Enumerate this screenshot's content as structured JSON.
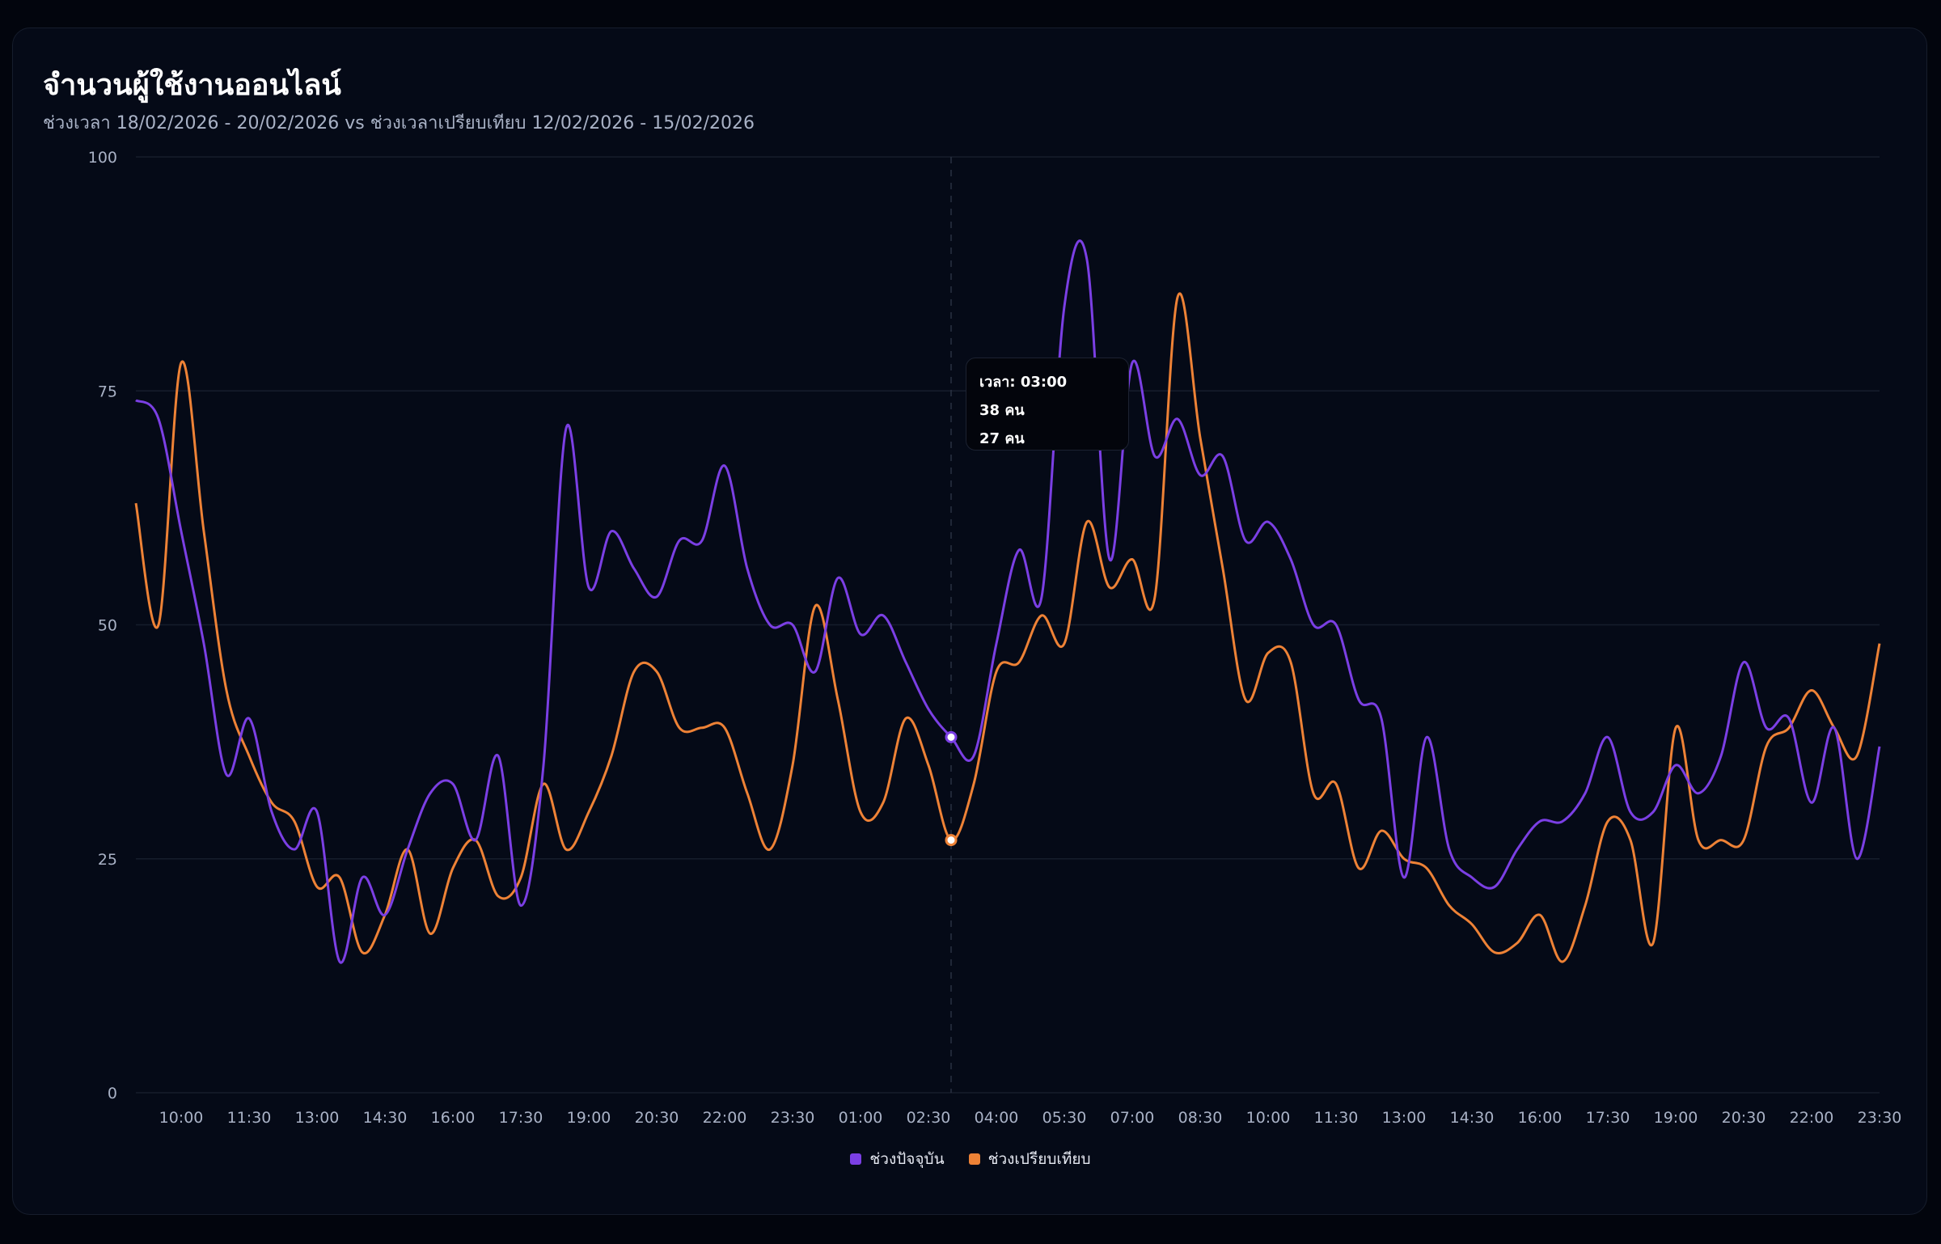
{
  "header": {
    "title": "จำนวนผู้ใช้งานออนไลน์",
    "subtitle": "ช่วงเวลา 18/02/2026 - 20/02/2026 vs ช่วงเวลาเปรียบเทียบ 12/02/2026 - 15/02/2026"
  },
  "tooltip": {
    "time_label": "เวลา: 03:00",
    "current_value": "38 คน",
    "compare_value": "27 คน"
  },
  "colors": {
    "current": "#7b3fe4",
    "compare": "#ee8236",
    "grid": "#161d2c",
    "axis_text": "#a9b2c6"
  },
  "chart_data": {
    "type": "line",
    "title": "จำนวนผู้ใช้งานออนไลน์",
    "xlabel": "",
    "ylabel": "",
    "ylim": [
      0,
      100
    ],
    "y_ticks": [
      0,
      25,
      50,
      75,
      100
    ],
    "grid": true,
    "legend_placement": "bottom",
    "x": [
      "09:00",
      "09:30",
      "10:00",
      "10:30",
      "11:00",
      "11:30",
      "12:00",
      "12:30",
      "13:00",
      "13:30",
      "14:00",
      "14:30",
      "15:00",
      "15:30",
      "16:00",
      "16:30",
      "17:00",
      "17:30",
      "18:00",
      "18:30",
      "19:00",
      "19:30",
      "20:00",
      "20:30",
      "21:00",
      "21:30",
      "22:00",
      "22:30",
      "23:00",
      "23:30",
      "00:00",
      "00:30",
      "01:00",
      "01:30",
      "02:00",
      "02:30",
      "03:00",
      "03:30",
      "04:00",
      "04:30",
      "05:00",
      "05:30",
      "06:00",
      "06:30",
      "07:00",
      "07:30",
      "08:00",
      "08:30",
      "09:00",
      "09:30",
      "10:00",
      "10:30",
      "11:00",
      "11:30",
      "12:00",
      "12:30",
      "13:00",
      "13:30",
      "14:00",
      "14:30",
      "15:00",
      "15:30",
      "16:00",
      "16:30",
      "17:00",
      "17:30",
      "18:00",
      "18:30",
      "19:00",
      "19:30",
      "20:00",
      "20:30",
      "21:00",
      "21:30",
      "22:00",
      "22:30",
      "23:00",
      "23:30"
    ],
    "x_tick_labels": [
      "10:00",
      "11:30",
      "13:00",
      "14:30",
      "16:00",
      "17:30",
      "19:00",
      "20:30",
      "22:00",
      "23:30",
      "01:00",
      "02:30",
      "04:00",
      "05:30",
      "07:00",
      "08:30",
      "10:00",
      "11:30",
      "13:00",
      "14:30",
      "16:00",
      "17:30",
      "19:00",
      "20:30",
      "22:00",
      "23:30"
    ],
    "series": [
      {
        "name": "ช่วงปัจจุบัน",
        "color": "#7b3fe4",
        "values": [
          74,
          72,
          60,
          48,
          34,
          40,
          30,
          26,
          30,
          14,
          23,
          19,
          26,
          32,
          33,
          27,
          36,
          20,
          35,
          71,
          54,
          60,
          56,
          53,
          59,
          59,
          67,
          56,
          50,
          50,
          45,
          55,
          49,
          51,
          46,
          41,
          38,
          36,
          48,
          58,
          53,
          84,
          89,
          57,
          78,
          68,
          72,
          66,
          68,
          59,
          61,
          57,
          50,
          50,
          42,
          40,
          23,
          38,
          26,
          23,
          22,
          26,
          29,
          29,
          32,
          38,
          30,
          30,
          35,
          32,
          36,
          46,
          39,
          40,
          31,
          39,
          25,
          37
        ]
      },
      {
        "name": "ช่วงเปรียบเทียบ",
        "color": "#ee8236",
        "values": [
          63,
          50,
          78,
          60,
          43,
          36,
          31,
          29,
          22,
          23,
          15,
          19,
          26,
          17,
          24,
          27,
          21,
          23,
          33,
          26,
          30,
          36,
          45,
          45,
          39,
          39,
          39,
          32,
          26,
          35,
          52,
          42,
          30,
          31,
          40,
          35,
          27,
          33,
          45,
          46,
          51,
          48,
          61,
          54,
          57,
          53,
          85,
          70,
          56,
          42,
          47,
          46,
          32,
          33,
          24,
          28,
          25,
          24,
          20,
          18,
          15,
          16,
          19,
          14,
          20,
          29,
          27,
          16,
          39,
          27,
          27,
          27,
          37,
          39,
          43,
          39,
          36,
          48
        ]
      }
    ],
    "highlight": {
      "x": "03:00",
      "values": [
        38,
        27
      ]
    }
  }
}
